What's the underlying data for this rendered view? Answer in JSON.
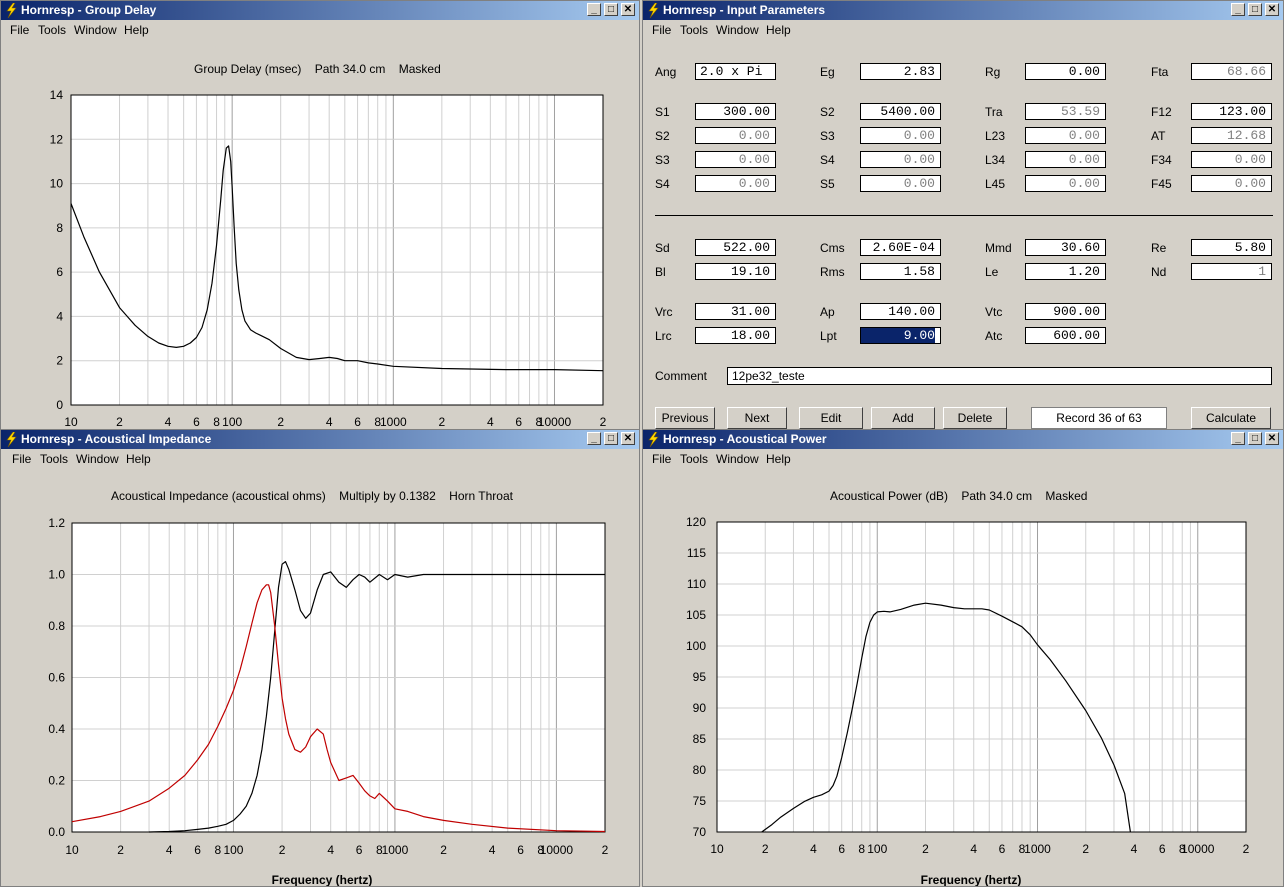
{
  "windows": {
    "group_delay": {
      "title": "Hornresp - Group Delay",
      "menu": [
        "File",
        "Tools",
        "Window",
        "Help"
      ],
      "plot_title": "Group Delay (msec)    Path 34.0 cm    Masked"
    },
    "input_params": {
      "title": "Hornresp - Input Parameters",
      "menu": [
        "File",
        "Tools",
        "Window",
        "Help"
      ],
      "fields": {
        "ang": {
          "label": "Ang",
          "value": "2.0 x Pi"
        },
        "eg": {
          "label": "Eg",
          "value": "2.83"
        },
        "rg": {
          "label": "Rg",
          "value": "0.00"
        },
        "fta": {
          "label": "Fta",
          "value": "68.66"
        },
        "s1": {
          "label": "S1",
          "value": "300.00"
        },
        "s2b": {
          "label": "S2",
          "value": "5400.00"
        },
        "tra": {
          "label": "Tra",
          "value": "53.59"
        },
        "f12": {
          "label": "F12",
          "value": "123.00"
        },
        "s2": {
          "label": "S2",
          "value": "0.00"
        },
        "s3b": {
          "label": "S3",
          "value": "0.00"
        },
        "l23": {
          "label": "L23",
          "value": "0.00"
        },
        "at": {
          "label": "AT",
          "value": "12.68"
        },
        "s3": {
          "label": "S3",
          "value": "0.00"
        },
        "s4b": {
          "label": "S4",
          "value": "0.00"
        },
        "l34": {
          "label": "L34",
          "value": "0.00"
        },
        "f34": {
          "label": "F34",
          "value": "0.00"
        },
        "s4": {
          "label": "S4",
          "value": "0.00"
        },
        "s5": {
          "label": "S5",
          "value": "0.00"
        },
        "l45": {
          "label": "L45",
          "value": "0.00"
        },
        "f45": {
          "label": "F45",
          "value": "0.00"
        },
        "sd": {
          "label": "Sd",
          "value": "522.00"
        },
        "cms": {
          "label": "Cms",
          "value": "2.60E-04"
        },
        "mmd": {
          "label": "Mmd",
          "value": "30.60"
        },
        "re": {
          "label": "Re",
          "value": "5.80"
        },
        "bl": {
          "label": "Bl",
          "value": "19.10"
        },
        "rms": {
          "label": "Rms",
          "value": "1.58"
        },
        "le": {
          "label": "Le",
          "value": "1.20"
        },
        "nd": {
          "label": "Nd",
          "value": "1"
        },
        "vrc": {
          "label": "Vrc",
          "value": "31.00"
        },
        "ap": {
          "label": "Ap",
          "value": "140.00"
        },
        "vtc": {
          "label": "Vtc",
          "value": "900.00"
        },
        "lrc": {
          "label": "Lrc",
          "value": "18.00"
        },
        "lpt": {
          "label": "Lpt",
          "value": "9.00"
        },
        "atc": {
          "label": "Atc",
          "value": "600.00"
        }
      },
      "comment_label": "Comment",
      "comment_value": "12pe32_teste",
      "buttons": {
        "previous": "Previous",
        "next": "Next",
        "edit": "Edit",
        "add": "Add",
        "delete": "Delete",
        "calculate": "Calculate"
      },
      "record": "Record 36 of 63"
    },
    "acoustical_impedance": {
      "title": "Hornresp - Acoustical Impedance",
      "menu": [
        "File",
        "Tools",
        "Window",
        "Help"
      ],
      "plot_title": "Acoustical Impedance (acoustical ohms)    Multiply by 0.1382    Horn Throat",
      "xlabel": "Frequency (hertz)"
    },
    "acoustical_power": {
      "title": "Hornresp - Acoustical Power",
      "menu": [
        "File",
        "Tools",
        "Window",
        "Help"
      ],
      "plot_title": "Acoustical Power (dB)    Path 34.0 cm    Masked",
      "xlabel": "Frequency (hertz)"
    }
  },
  "x_tick_labels": [
    "10",
    "2",
    "4",
    "6",
    "8",
    "100",
    "2",
    "4",
    "6",
    "8",
    "1000",
    "2",
    "4",
    "6",
    "8",
    "10000",
    "2"
  ],
  "chart_data": [
    {
      "type": "line",
      "title": "Group Delay (msec)    Path 34.0 cm    Masked",
      "xscale": "log",
      "xlim": [
        10,
        20000
      ],
      "ylim": [
        0,
        14
      ],
      "yticks": [
        0,
        2,
        4,
        6,
        8,
        10,
        12,
        14
      ],
      "grid": true,
      "series": [
        {
          "color": "#000000",
          "x": [
            10,
            12,
            15,
            20,
            25,
            30,
            35,
            40,
            45,
            50,
            55,
            60,
            65,
            70,
            75,
            80,
            85,
            88,
            92,
            95,
            98,
            100,
            103,
            106,
            110,
            115,
            120,
            130,
            140,
            150,
            170,
            200,
            250,
            300,
            350,
            400,
            450,
            500,
            600,
            700,
            800,
            1000,
            2000,
            5000,
            10000,
            20000
          ],
          "y": [
            9.1,
            7.6,
            6.0,
            4.4,
            3.6,
            3.1,
            2.8,
            2.65,
            2.6,
            2.65,
            2.8,
            3.05,
            3.5,
            4.3,
            5.5,
            7.2,
            9.3,
            10.6,
            11.6,
            11.7,
            11.0,
            9.8,
            8.0,
            6.4,
            5.2,
            4.3,
            3.8,
            3.4,
            3.25,
            3.15,
            2.95,
            2.55,
            2.15,
            2.05,
            2.1,
            2.15,
            2.1,
            2.0,
            2.0,
            1.9,
            1.85,
            1.75,
            1.65,
            1.6,
            1.6,
            1.55
          ]
        }
      ]
    },
    {
      "type": "line",
      "title": "Acoustical Impedance (acoustical ohms)    Multiply by 0.1382    Horn Throat",
      "xlabel": "Frequency (hertz)",
      "xscale": "log",
      "xlim": [
        10,
        20000
      ],
      "ylim": [
        0,
        1.2
      ],
      "yticks": [
        0.0,
        0.2,
        0.4,
        0.6,
        0.8,
        1.0,
        1.2
      ],
      "grid": true,
      "series": [
        {
          "color": "#000000",
          "x": [
            30,
            40,
            50,
            60,
            70,
            80,
            90,
            100,
            110,
            120,
            130,
            140,
            150,
            160,
            170,
            180,
            190,
            200,
            210,
            220,
            240,
            260,
            280,
            300,
            330,
            360,
            400,
            450,
            500,
            550,
            600,
            650,
            700,
            800,
            900,
            1000,
            1200,
            1500,
            2000,
            3000,
            5000,
            10000,
            20000
          ],
          "y": [
            0.0,
            0.002,
            0.005,
            0.01,
            0.015,
            0.022,
            0.03,
            0.045,
            0.07,
            0.1,
            0.15,
            0.22,
            0.32,
            0.45,
            0.6,
            0.78,
            0.95,
            1.04,
            1.05,
            1.02,
            0.94,
            0.86,
            0.83,
            0.85,
            0.94,
            1.0,
            1.01,
            0.97,
            0.95,
            0.98,
            1.0,
            0.99,
            0.97,
            1.0,
            0.98,
            1.0,
            0.99,
            1.0,
            1.0,
            1.0,
            1.0,
            1.0,
            1.0
          ]
        },
        {
          "color": "#c00000",
          "x": [
            10,
            15,
            20,
            30,
            40,
            50,
            60,
            70,
            80,
            90,
            100,
            110,
            120,
            130,
            140,
            150,
            160,
            165,
            170,
            180,
            190,
            200,
            210,
            220,
            240,
            260,
            280,
            300,
            330,
            360,
            380,
            400,
            450,
            500,
            550,
            600,
            650,
            700,
            750,
            800,
            900,
            1000,
            1200,
            1500,
            2000,
            3000,
            5000,
            10000,
            20000
          ],
          "y": [
            0.04,
            0.06,
            0.08,
            0.12,
            0.17,
            0.22,
            0.28,
            0.34,
            0.41,
            0.48,
            0.55,
            0.63,
            0.72,
            0.81,
            0.89,
            0.94,
            0.96,
            0.96,
            0.93,
            0.8,
            0.65,
            0.52,
            0.44,
            0.38,
            0.32,
            0.31,
            0.33,
            0.37,
            0.4,
            0.38,
            0.32,
            0.27,
            0.2,
            0.21,
            0.22,
            0.19,
            0.16,
            0.14,
            0.13,
            0.15,
            0.12,
            0.09,
            0.08,
            0.06,
            0.045,
            0.03,
            0.015,
            0.005,
            0.002
          ]
        }
      ]
    },
    {
      "type": "line",
      "title": "Acoustical Power (dB)    Path 34.0 cm    Masked",
      "xlabel": "Frequency (hertz)",
      "xscale": "log",
      "xlim": [
        10,
        20000
      ],
      "ylim": [
        70,
        120
      ],
      "yticks": [
        70,
        75,
        80,
        85,
        90,
        95,
        100,
        105,
        110,
        115,
        120
      ],
      "grid": true,
      "series": [
        {
          "color": "#000000",
          "x": [
            19,
            22,
            25,
            30,
            35,
            40,
            45,
            50,
            53,
            56,
            60,
            65,
            70,
            75,
            80,
            85,
            90,
            95,
            100,
            110,
            120,
            140,
            170,
            200,
            250,
            300,
            350,
            400,
            450,
            500,
            600,
            700,
            800,
            900,
            1000,
            1200,
            1500,
            2000,
            2500,
            3000,
            3500,
            3800
          ],
          "y": [
            70.0,
            71.2,
            72.4,
            73.8,
            74.9,
            75.6,
            76.0,
            76.6,
            77.5,
            79.0,
            82.0,
            86.0,
            90.0,
            94.0,
            98.0,
            101.5,
            103.8,
            105.0,
            105.5,
            105.6,
            105.5,
            105.9,
            106.6,
            106.9,
            106.6,
            106.2,
            106.0,
            106.0,
            106.0,
            105.8,
            104.8,
            103.9,
            103.1,
            101.8,
            100.2,
            97.8,
            94.4,
            89.6,
            85.2,
            80.8,
            76.2,
            70.0
          ]
        }
      ]
    }
  ]
}
